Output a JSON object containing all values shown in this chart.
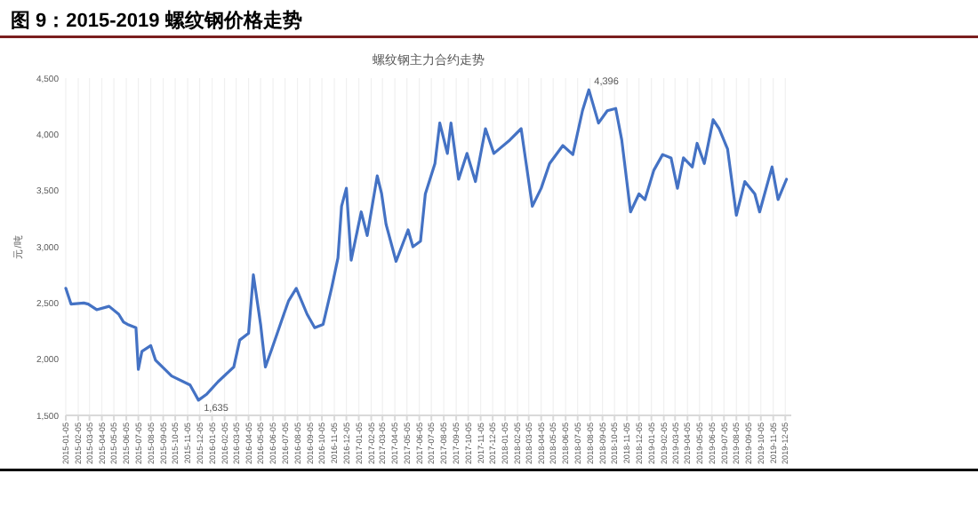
{
  "chart_data": {
    "type": "line",
    "title": "图 9：2015-2019 螺纹钢价格走势",
    "subtitle": "螺纹钢主力合约走势",
    "ylabel": "元/吨",
    "x": [
      "2015-01-05",
      "2015-01-18",
      "2015-02-19",
      "2015-03-02",
      "2015-03-23",
      "2015-04-23",
      "2015-05-17",
      "2015-05-29",
      "2015-06-08",
      "2015-06-29",
      "2015-07-05",
      "2015-07-14",
      "2015-08-05",
      "2015-08-17",
      "2015-09-26",
      "2015-11-11",
      "2015-12-02",
      "2015-12-23",
      "2016-01-20",
      "2016-02-28",
      "2016-03-14",
      "2016-04-05",
      "2016-04-17",
      "2016-05-05",
      "2016-05-17",
      "2016-06-02",
      "2016-07-02",
      "2016-07-14",
      "2016-08-02",
      "2016-08-29",
      "2016-09-17",
      "2016-10-08",
      "2016-10-29",
      "2016-11-14",
      "2016-11-23",
      "2016-12-05",
      "2016-12-17",
      "2017-01-11",
      "2017-01-26",
      "2017-02-20",
      "2017-03-03",
      "2017-03-14",
      "2017-04-08",
      "2017-05-08",
      "2017-05-20",
      "2017-06-08",
      "2017-06-20",
      "2017-07-14",
      "2017-07-26",
      "2017-08-14",
      "2017-08-23",
      "2017-09-11",
      "2017-10-02",
      "2017-10-23",
      "2017-11-17",
      "2017-12-08",
      "2018-01-17",
      "2018-02-14",
      "2018-03-14",
      "2018-04-05",
      "2018-04-26",
      "2018-05-29",
      "2018-06-23",
      "2018-07-17",
      "2018-08-02",
      "2018-08-26",
      "2018-09-17",
      "2018-10-08",
      "2018-10-23",
      "2018-11-14",
      "2018-12-05",
      "2018-12-20",
      "2019-01-11",
      "2019-02-02",
      "2019-02-23",
      "2019-03-11",
      "2019-03-26",
      "2019-04-17",
      "2019-04-29",
      "2019-05-17",
      "2019-06-08",
      "2019-06-23",
      "2019-07-14",
      "2019-08-05",
      "2019-08-26",
      "2019-09-20",
      "2019-10-02",
      "2019-11-02",
      "2019-11-17",
      "2019-12-08"
    ],
    "series": [
      {
        "color": "#4472c4",
        "values": [
          2630,
          2490,
          2500,
          2490,
          2440,
          2470,
          2400,
          2330,
          2310,
          2280,
          1910,
          2070,
          2120,
          1990,
          1850,
          1770,
          1635,
          1690,
          1800,
          1930,
          2170,
          2230,
          2750,
          2310,
          1930,
          2090,
          2400,
          2520,
          2630,
          2400,
          2280,
          2310,
          2630,
          2900,
          3360,
          3520,
          2880,
          3310,
          3100,
          3630,
          3470,
          3200,
          2870,
          3150,
          3000,
          3050,
          3470,
          3740,
          4100,
          3830,
          4100,
          3600,
          3830,
          3580,
          4050,
          3830,
          3950,
          4050,
          3360,
          3520,
          3740,
          3900,
          3820,
          4210,
          4396,
          4100,
          4210,
          4230,
          3950,
          3310,
          3470,
          3420,
          3680,
          3820,
          3790,
          3520,
          3790,
          3710,
          3920,
          3740,
          4130,
          4050,
          3870,
          3280,
          3580,
          3470,
          3310,
          3710,
          3420,
          3600
        ]
      }
    ],
    "xlim": [
      "2015-01-05",
      "2019-12-20"
    ],
    "xticks": [
      "2015-01-05",
      "2015-02-05",
      "2015-03-05",
      "2015-04-05",
      "2015-05-05",
      "2015-06-05",
      "2015-07-05",
      "2015-08-05",
      "2015-09-05",
      "2015-10-05",
      "2015-11-05",
      "2015-12-05",
      "2016-01-05",
      "2016-02-05",
      "2016-03-05",
      "2016-04-05",
      "2016-05-05",
      "2016-06-05",
      "2016-07-05",
      "2016-08-05",
      "2016-09-05",
      "2016-10-05",
      "2016-11-05",
      "2016-12-05",
      "2017-01-05",
      "2017-02-05",
      "2017-03-05",
      "2017-04-05",
      "2017-05-05",
      "2017-06-05",
      "2017-07-05",
      "2017-08-05",
      "2017-09-05",
      "2017-10-05",
      "2017-11-05",
      "2017-12-05",
      "2018-01-05",
      "2018-02-05",
      "2018-03-05",
      "2018-04-05",
      "2018-05-05",
      "2018-06-05",
      "2018-07-05",
      "2018-08-05",
      "2018-09-05",
      "2018-10-05",
      "2018-11-05",
      "2018-12-05",
      "2019-01-05",
      "2019-02-05",
      "2019-03-05",
      "2019-04-05",
      "2019-05-05",
      "2019-06-05",
      "2019-07-05",
      "2019-08-05",
      "2019-09-05",
      "2019-10-05",
      "2019-11-05",
      "2019-12-05"
    ],
    "ylim": [
      1500,
      4500
    ],
    "yticks": [
      {
        "value": 1500,
        "label": "1,500"
      },
      {
        "value": 2000,
        "label": "2,000"
      },
      {
        "value": 2500,
        "label": "2,500"
      },
      {
        "value": 3000,
        "label": "3,000"
      },
      {
        "value": 3500,
        "label": "3,500"
      },
      {
        "value": 4000,
        "label": "4,000"
      },
      {
        "value": 4500,
        "label": "4,500"
      }
    ],
    "grid": "x",
    "marker": "none",
    "line_style": "solid",
    "annotations": [
      {
        "text": "4,396",
        "x": "2018-08-02",
        "y": 4396
      },
      {
        "text": "1,635",
        "x": "2015-12-02",
        "y": 1635
      }
    ]
  }
}
